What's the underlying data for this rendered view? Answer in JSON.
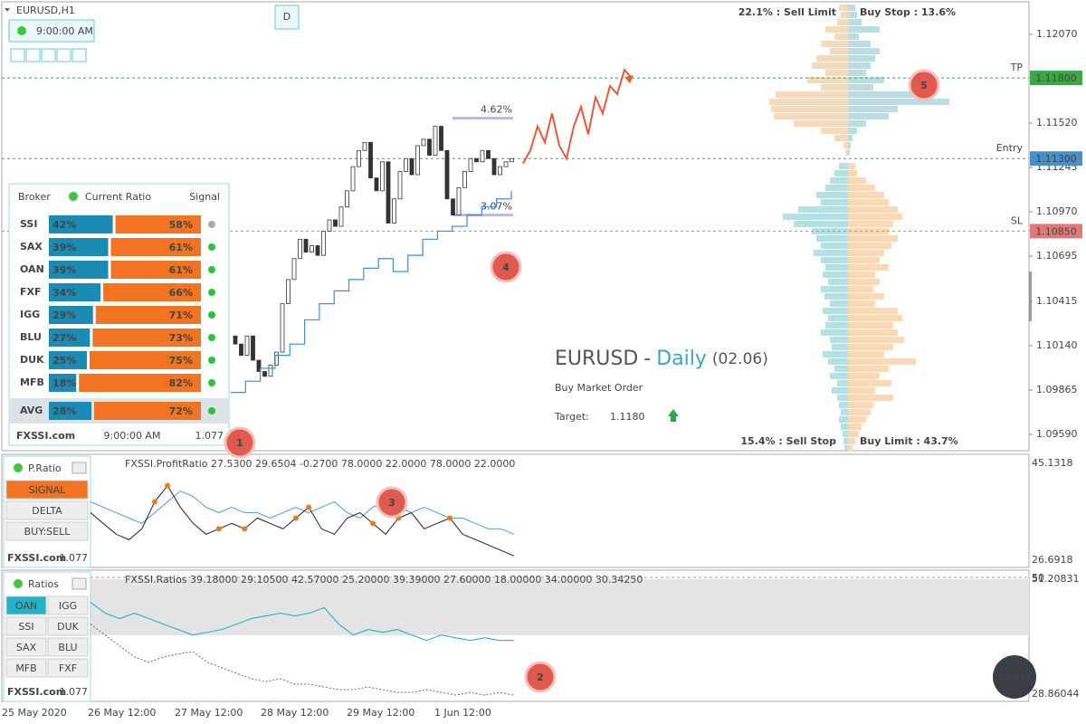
{
  "symbol": "EURUSD,H1",
  "timeframe_button": "D",
  "time_display": "9:00:00 AM",
  "price_axis": {
    "ylim": [
      1.09489,
      1.12283
    ],
    "yticks": [
      {
        "value": 1.1207,
        "label": "1.12070"
      },
      {
        "value": 1.1152,
        "label": "1.11520"
      },
      {
        "value": 1.11245,
        "label": "1.11245"
      },
      {
        "value": 1.1097,
        "label": "1.10970"
      },
      {
        "value": 1.10695,
        "label": "1.10695"
      },
      {
        "value": 1.10415,
        "label": "1.10415"
      },
      {
        "value": 1.1014,
        "label": "1.10140"
      },
      {
        "value": 1.09865,
        "label": "1.09865"
      },
      {
        "value": 1.0959,
        "label": "1.09590"
      }
    ]
  },
  "levels": [
    {
      "name": "TP",
      "value": 1.118,
      "label": "1.11800",
      "color": "#3aa845"
    },
    {
      "name": "Entry",
      "value": 1.113,
      "label": "1.11300",
      "color": "#4a90c8"
    },
    {
      "name": "SL",
      "value": 1.1085,
      "label": "1.10850",
      "color": "#e07a7a"
    }
  ],
  "candles": {
    "first_open": 1.102,
    "closes": [
      1.1015,
      1.1008,
      1.102,
      1.1005,
      1.0998,
      1.0995,
      1.1002,
      1.101,
      1.104,
      1.1055,
      1.1068,
      1.108,
      1.1072,
      1.1076,
      1.107,
      1.1085,
      1.1092,
      1.1088,
      1.11,
      1.111,
      1.1125,
      1.1135,
      1.114,
      1.1118,
      1.111,
      1.1128,
      1.109,
      1.1105,
      1.1122,
      1.113,
      1.112,
      1.1138,
      1.1142,
      1.1132,
      1.115,
      1.1135,
      1.1105,
      1.1095,
      1.1112,
      1.1122,
      1.113,
      1.1128,
      1.1135,
      1.113,
      1.112,
      1.1125,
      1.1128,
      1.113
    ]
  },
  "stop_line": [
    1.0985,
    1.0992,
    1.1,
    1.1008,
    1.1015,
    1.103,
    1.104,
    1.1048,
    1.1055,
    1.1062,
    1.1068,
    1.106,
    1.107,
    1.108,
    1.1085,
    1.1088,
    1.1095,
    1.11,
    1.1105,
    1.111
  ],
  "forecast": [
    1.1127,
    1.1135,
    1.115,
    1.114,
    1.1158,
    1.1138,
    1.113,
    1.115,
    1.1162,
    1.1145,
    1.1168,
    1.1158,
    1.1175,
    1.117,
    1.1185,
    1.118
  ],
  "range_marks": [
    {
      "label": "4.62%",
      "value": 1.1155
    },
    {
      "label": "3.07%",
      "value": 1.1095
    }
  ],
  "summary": {
    "symbol": "EURUSD",
    "separator": "-",
    "period": "Daily",
    "date": "(02.06)",
    "order": "Buy Market Order",
    "target_label": "Target:",
    "target": "1.1180"
  },
  "orderbook": {
    "top_left_label": "22.1% : Sell Limit",
    "top_right_label": "Buy Stop : 13.6%",
    "bottom_left_label": "15.4% : Sell Stop",
    "bottom_right_label": "Buy Limit : 43.7%",
    "upper_left": [
      10,
      8,
      12,
      25,
      15,
      30,
      20,
      35,
      40,
      25,
      45,
      30,
      80,
      87,
      85,
      82,
      60,
      30,
      15,
      5,
      3
    ],
    "upper_right": [
      8,
      10,
      15,
      35,
      12,
      25,
      35,
      30,
      25,
      20,
      40,
      28,
      85,
      112,
      55,
      45,
      20,
      10,
      5,
      3,
      2
    ],
    "lower_left": [
      10,
      15,
      20,
      25,
      35,
      30,
      55,
      72,
      60,
      40,
      35,
      30,
      38,
      30,
      25,
      28,
      22,
      30,
      26,
      20,
      28,
      22,
      25,
      30,
      20,
      18,
      28,
      22,
      15,
      20,
      12,
      18,
      12,
      10,
      8,
      10,
      8,
      6,
      5,
      4
    ],
    "lower_right": [
      8,
      10,
      20,
      30,
      40,
      45,
      55,
      60,
      50,
      45,
      55,
      48,
      40,
      35,
      45,
      30,
      35,
      28,
      40,
      30,
      55,
      60,
      50,
      55,
      62,
      50,
      40,
      75,
      45,
      35,
      48,
      30,
      50,
      28,
      25,
      20,
      15,
      12,
      8,
      5
    ]
  },
  "ratio_panel": {
    "broker_header": "Broker",
    "title": "Current Ratio",
    "signal_header": "Signal",
    "rows": [
      {
        "broker": "SSI",
        "buy": 42,
        "buy_label": "42%",
        "sell": 58,
        "sell_label": "58%",
        "signal": "neutral"
      },
      {
        "broker": "SAX",
        "buy": 39,
        "buy_label": "39%",
        "sell": 61,
        "sell_label": "61%",
        "signal": "buy"
      },
      {
        "broker": "OAN",
        "buy": 39,
        "buy_label": "39%",
        "sell": 61,
        "sell_label": "61%",
        "signal": "buy"
      },
      {
        "broker": "FXF",
        "buy": 34,
        "buy_label": "34%",
        "sell": 66,
        "sell_label": "66%",
        "signal": "buy"
      },
      {
        "broker": "IGG",
        "buy": 29,
        "buy_label": "29%",
        "sell": 71,
        "sell_label": "71%",
        "signal": "buy"
      },
      {
        "broker": "BLU",
        "buy": 27,
        "buy_label": "27%",
        "sell": 73,
        "sell_label": "73%",
        "signal": "buy"
      },
      {
        "broker": "DUK",
        "buy": 25,
        "buy_label": "25%",
        "sell": 75,
        "sell_label": "75%",
        "signal": "buy"
      },
      {
        "broker": "MFB",
        "buy": 18,
        "buy_label": "18%",
        "sell": 82,
        "sell_label": "82%",
        "signal": "buy"
      }
    ],
    "avg": {
      "broker": "AVG",
      "buy": 28,
      "buy_label": "28%",
      "sell": 72,
      "sell_label": "72%",
      "signal": "buy"
    },
    "footer_brand": "FXSSI.com",
    "footer_time": "9:00:00 AM",
    "footer_version": "1.077"
  },
  "badges": [
    "1",
    "2",
    "3",
    "4",
    "5"
  ],
  "pratio": {
    "button": "P.Ratio",
    "buttons": [
      "SIGNAL",
      "DELTA",
      "BUY:SELL"
    ],
    "footer_brand": "FXSSI.com",
    "footer_version": "1.077",
    "header": "FXSSI.ProfitRatio 27.5300 29.6504 -0.2700 78.0000 22.0000 78.0000 22.0000",
    "axis_top": "45.1318",
    "axis_bottom": "26.6918",
    "ylim": [
      26.6918,
      45.1318
    ],
    "series1": [
      38,
      37,
      36,
      35,
      34,
      36,
      38,
      40,
      39,
      37,
      36,
      37,
      36,
      36,
      35,
      36,
      37,
      36,
      37,
      38,
      36,
      35,
      37,
      38,
      37,
      36,
      37,
      36,
      35,
      35,
      34,
      33,
      33,
      32
    ],
    "series2": [
      36,
      34,
      32,
      31,
      33,
      38,
      41,
      37,
      34,
      32,
      33,
      34,
      33,
      35,
      34,
      33,
      35,
      37,
      33,
      32,
      35,
      36,
      34,
      32,
      35,
      36,
      33,
      34,
      35,
      32,
      31,
      30,
      29,
      28
    ],
    "signals": [
      5,
      6,
      10,
      12,
      16,
      17,
      22,
      24,
      28
    ]
  },
  "ratios": {
    "button": "Ratios",
    "buttons": [
      "OAN",
      "IGG",
      "SSI",
      "DUK",
      "SAX",
      "BLU",
      "MFB",
      "FXF"
    ],
    "footer_brand": "FXSSI.com",
    "footer_version": "1.077",
    "header": "FXSSI.Ratios 39.18000 29.10500 42.57000 25.20000 39.39000 27.60000 18.00000 34.00000 30.34250",
    "axis_top": "51.20831",
    "axis_mid": "50",
    "axis_bottom": "28.86044",
    "ylim": [
      28.86044,
      51.20831
    ],
    "series1": [
      47,
      45,
      44,
      45,
      44,
      43,
      42,
      41,
      41.5,
      42,
      43,
      44,
      44.5,
      45,
      44.5,
      45,
      46,
      43,
      41,
      42,
      41.5,
      42,
      41,
      40,
      41,
      40.5,
      40,
      40.5,
      40,
      40
    ],
    "series2": [
      43,
      41,
      39,
      37,
      36,
      37,
      37.5,
      38,
      36,
      35,
      34,
      33,
      32.5,
      33,
      32,
      32,
      31.5,
      31,
      31,
      31.5,
      31,
      30.5,
      30.5,
      31,
      30.5,
      30,
      30.5,
      30,
      30.5,
      30
    ]
  },
  "brand": "FXSSI",
  "time_axis": [
    "25 May 2020",
    "26 May 12:00",
    "27 May 12:00",
    "28 May 12:00",
    "29 May 12:00",
    "1 Jun 12:00"
  ]
}
